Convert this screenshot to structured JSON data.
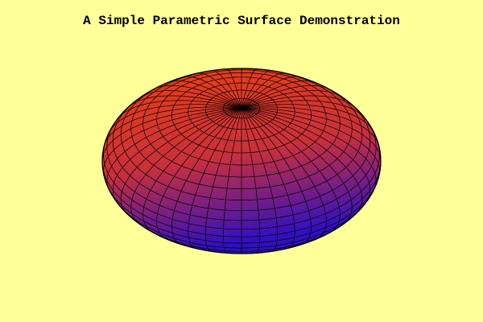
{
  "title": "A Simple Parametric Surface Demonstration",
  "colors": {
    "background": "#ffff99",
    "surface_top": "#f04010",
    "surface_mid": "#c8303c",
    "surface_bottom": "#3010c0",
    "mesh": "#000000"
  },
  "chart_data": {
    "type": "surface",
    "title": "A Simple Parametric Surface Demonstration",
    "surface": "ellipsoid",
    "parametrization": {
      "u_range": [
        0,
        360
      ],
      "v_range": [
        -90,
        90
      ],
      "u_steps": 48,
      "v_steps": 24
    },
    "semi_axes": {
      "a": 1.0,
      "b": 1.0,
      "c": 0.5
    },
    "axes_shown": false,
    "grid": false,
    "colormap": "blue-to-red (bottom to top)"
  }
}
